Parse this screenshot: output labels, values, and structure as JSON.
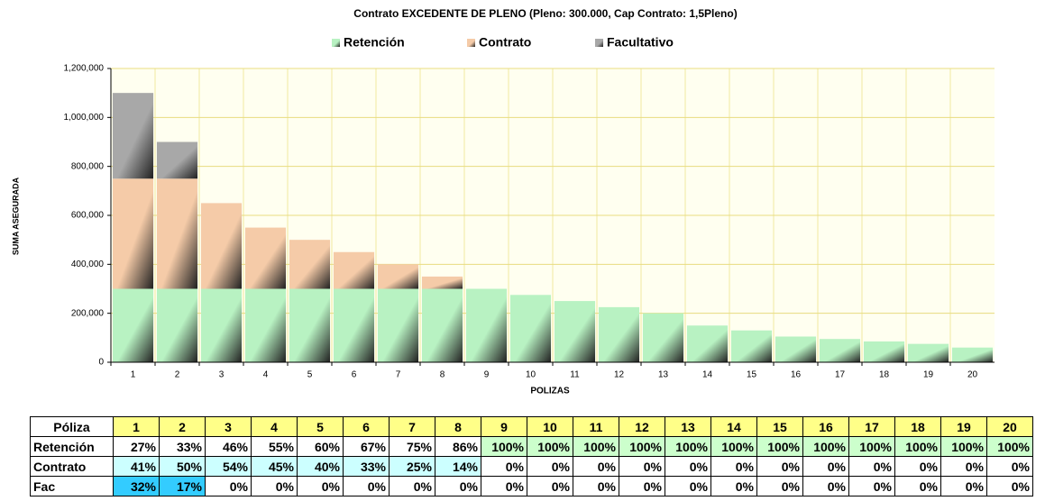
{
  "chart_data": {
    "type": "stacked-bar",
    "title": "Contrato EXCEDENTE DE PLENO (Pleno: 300.000, Cap Contrato: 1,5Pleno)",
    "x_label": "POLIZAS",
    "y_label": "SUMA ASEGURADA",
    "categories": [
      "1",
      "2",
      "3",
      "4",
      "5",
      "6",
      "7",
      "8",
      "9",
      "10",
      "11",
      "12",
      "13",
      "14",
      "15",
      "16",
      "17",
      "18",
      "19",
      "20"
    ],
    "series": [
      {
        "name": "Retención",
        "color": "#b8f2c2",
        "values": [
          300000,
          300000,
          300000,
          300000,
          300000,
          300000,
          300000,
          300000,
          300000,
          275000,
          250000,
          225000,
          200000,
          150000,
          130000,
          105000,
          95000,
          85000,
          75000,
          60000
        ]
      },
      {
        "name": "Contrato",
        "color": "#f5cba8",
        "values": [
          450000,
          450000,
          350000,
          250000,
          200000,
          150000,
          100000,
          50000,
          0,
          0,
          0,
          0,
          0,
          0,
          0,
          0,
          0,
          0,
          0,
          0
        ]
      },
      {
        "name": "Facultativo",
        "color": "#a8a8a8",
        "values": [
          350000,
          150000,
          0,
          0,
          0,
          0,
          0,
          0,
          0,
          0,
          0,
          0,
          0,
          0,
          0,
          0,
          0,
          0,
          0,
          0
        ]
      }
    ],
    "ylim": [
      0,
      1200000
    ],
    "yticks": [
      0,
      {
        "value": 200000,
        "label": "200,000"
      },
      {
        "value": 400000,
        "label": "400,000"
      },
      {
        "value": 600000,
        "label": "600,000"
      },
      {
        "value": 800000,
        "label": "800,000"
      },
      {
        "value": 1000000,
        "label": "1,000,000"
      },
      {
        "value": 1200000,
        "label": "1,200,000"
      }
    ],
    "grid": true,
    "legend": "top"
  },
  "table": {
    "header": [
      "Póliza",
      "1",
      "2",
      "3",
      "4",
      "5",
      "6",
      "7",
      "8",
      "9",
      "10",
      "11",
      "12",
      "13",
      "14",
      "15",
      "16",
      "17",
      "18",
      "19",
      "20"
    ],
    "rows": [
      [
        "Retención",
        "27%",
        "33%",
        "46%",
        "55%",
        "60%",
        "67%",
        "75%",
        "86%",
        "100%",
        "100%",
        "100%",
        "100%",
        "100%",
        "100%",
        "100%",
        "100%",
        "100%",
        "100%",
        "100%",
        "100%"
      ],
      [
        "Contrato",
        "41%",
        "50%",
        "54%",
        "45%",
        "40%",
        "33%",
        "25%",
        "14%",
        "0%",
        "0%",
        "0%",
        "0%",
        "0%",
        "0%",
        "0%",
        "0%",
        "0%",
        "0%",
        "0%",
        "0%"
      ],
      [
        "Fac",
        "32%",
        "17%",
        "0%",
        "0%",
        "0%",
        "0%",
        "0%",
        "0%",
        "0%",
        "0%",
        "0%",
        "0%",
        "0%",
        "0%",
        "0%",
        "0%",
        "0%",
        "0%",
        "0%",
        "0%"
      ]
    ]
  }
}
